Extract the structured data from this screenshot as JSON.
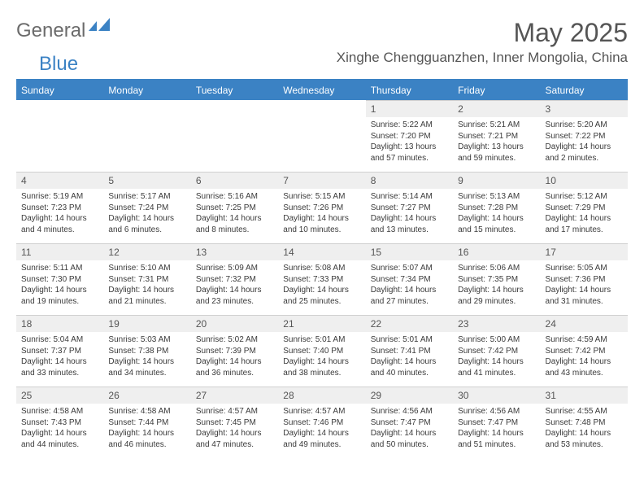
{
  "logo": {
    "word1": "General",
    "word2": "Blue"
  },
  "title": "May 2025",
  "location": "Xinghe Chengguanzhen, Inner Mongolia, China",
  "colors": {
    "header_bg": "#3b82c4",
    "header_text": "#ffffff",
    "daynum_bg": "#efefef",
    "text": "#555555",
    "body_text": "#3a3a3a"
  },
  "weekdays": [
    "Sunday",
    "Monday",
    "Tuesday",
    "Wednesday",
    "Thursday",
    "Friday",
    "Saturday"
  ],
  "weeks": [
    [
      {
        "n": "",
        "sr": "",
        "ss": "",
        "dl": ""
      },
      {
        "n": "",
        "sr": "",
        "ss": "",
        "dl": ""
      },
      {
        "n": "",
        "sr": "",
        "ss": "",
        "dl": ""
      },
      {
        "n": "",
        "sr": "",
        "ss": "",
        "dl": ""
      },
      {
        "n": "1",
        "sr": "Sunrise: 5:22 AM",
        "ss": "Sunset: 7:20 PM",
        "dl": "Daylight: 13 hours and 57 minutes."
      },
      {
        "n": "2",
        "sr": "Sunrise: 5:21 AM",
        "ss": "Sunset: 7:21 PM",
        "dl": "Daylight: 13 hours and 59 minutes."
      },
      {
        "n": "3",
        "sr": "Sunrise: 5:20 AM",
        "ss": "Sunset: 7:22 PM",
        "dl": "Daylight: 14 hours and 2 minutes."
      }
    ],
    [
      {
        "n": "4",
        "sr": "Sunrise: 5:19 AM",
        "ss": "Sunset: 7:23 PM",
        "dl": "Daylight: 14 hours and 4 minutes."
      },
      {
        "n": "5",
        "sr": "Sunrise: 5:17 AM",
        "ss": "Sunset: 7:24 PM",
        "dl": "Daylight: 14 hours and 6 minutes."
      },
      {
        "n": "6",
        "sr": "Sunrise: 5:16 AM",
        "ss": "Sunset: 7:25 PM",
        "dl": "Daylight: 14 hours and 8 minutes."
      },
      {
        "n": "7",
        "sr": "Sunrise: 5:15 AM",
        "ss": "Sunset: 7:26 PM",
        "dl": "Daylight: 14 hours and 10 minutes."
      },
      {
        "n": "8",
        "sr": "Sunrise: 5:14 AM",
        "ss": "Sunset: 7:27 PM",
        "dl": "Daylight: 14 hours and 13 minutes."
      },
      {
        "n": "9",
        "sr": "Sunrise: 5:13 AM",
        "ss": "Sunset: 7:28 PM",
        "dl": "Daylight: 14 hours and 15 minutes."
      },
      {
        "n": "10",
        "sr": "Sunrise: 5:12 AM",
        "ss": "Sunset: 7:29 PM",
        "dl": "Daylight: 14 hours and 17 minutes."
      }
    ],
    [
      {
        "n": "11",
        "sr": "Sunrise: 5:11 AM",
        "ss": "Sunset: 7:30 PM",
        "dl": "Daylight: 14 hours and 19 minutes."
      },
      {
        "n": "12",
        "sr": "Sunrise: 5:10 AM",
        "ss": "Sunset: 7:31 PM",
        "dl": "Daylight: 14 hours and 21 minutes."
      },
      {
        "n": "13",
        "sr": "Sunrise: 5:09 AM",
        "ss": "Sunset: 7:32 PM",
        "dl": "Daylight: 14 hours and 23 minutes."
      },
      {
        "n": "14",
        "sr": "Sunrise: 5:08 AM",
        "ss": "Sunset: 7:33 PM",
        "dl": "Daylight: 14 hours and 25 minutes."
      },
      {
        "n": "15",
        "sr": "Sunrise: 5:07 AM",
        "ss": "Sunset: 7:34 PM",
        "dl": "Daylight: 14 hours and 27 minutes."
      },
      {
        "n": "16",
        "sr": "Sunrise: 5:06 AM",
        "ss": "Sunset: 7:35 PM",
        "dl": "Daylight: 14 hours and 29 minutes."
      },
      {
        "n": "17",
        "sr": "Sunrise: 5:05 AM",
        "ss": "Sunset: 7:36 PM",
        "dl": "Daylight: 14 hours and 31 minutes."
      }
    ],
    [
      {
        "n": "18",
        "sr": "Sunrise: 5:04 AM",
        "ss": "Sunset: 7:37 PM",
        "dl": "Daylight: 14 hours and 33 minutes."
      },
      {
        "n": "19",
        "sr": "Sunrise: 5:03 AM",
        "ss": "Sunset: 7:38 PM",
        "dl": "Daylight: 14 hours and 34 minutes."
      },
      {
        "n": "20",
        "sr": "Sunrise: 5:02 AM",
        "ss": "Sunset: 7:39 PM",
        "dl": "Daylight: 14 hours and 36 minutes."
      },
      {
        "n": "21",
        "sr": "Sunrise: 5:01 AM",
        "ss": "Sunset: 7:40 PM",
        "dl": "Daylight: 14 hours and 38 minutes."
      },
      {
        "n": "22",
        "sr": "Sunrise: 5:01 AM",
        "ss": "Sunset: 7:41 PM",
        "dl": "Daylight: 14 hours and 40 minutes."
      },
      {
        "n": "23",
        "sr": "Sunrise: 5:00 AM",
        "ss": "Sunset: 7:42 PM",
        "dl": "Daylight: 14 hours and 41 minutes."
      },
      {
        "n": "24",
        "sr": "Sunrise: 4:59 AM",
        "ss": "Sunset: 7:42 PM",
        "dl": "Daylight: 14 hours and 43 minutes."
      }
    ],
    [
      {
        "n": "25",
        "sr": "Sunrise: 4:58 AM",
        "ss": "Sunset: 7:43 PM",
        "dl": "Daylight: 14 hours and 44 minutes."
      },
      {
        "n": "26",
        "sr": "Sunrise: 4:58 AM",
        "ss": "Sunset: 7:44 PM",
        "dl": "Daylight: 14 hours and 46 minutes."
      },
      {
        "n": "27",
        "sr": "Sunrise: 4:57 AM",
        "ss": "Sunset: 7:45 PM",
        "dl": "Daylight: 14 hours and 47 minutes."
      },
      {
        "n": "28",
        "sr": "Sunrise: 4:57 AM",
        "ss": "Sunset: 7:46 PM",
        "dl": "Daylight: 14 hours and 49 minutes."
      },
      {
        "n": "29",
        "sr": "Sunrise: 4:56 AM",
        "ss": "Sunset: 7:47 PM",
        "dl": "Daylight: 14 hours and 50 minutes."
      },
      {
        "n": "30",
        "sr": "Sunrise: 4:56 AM",
        "ss": "Sunset: 7:47 PM",
        "dl": "Daylight: 14 hours and 51 minutes."
      },
      {
        "n": "31",
        "sr": "Sunrise: 4:55 AM",
        "ss": "Sunset: 7:48 PM",
        "dl": "Daylight: 14 hours and 53 minutes."
      }
    ]
  ]
}
